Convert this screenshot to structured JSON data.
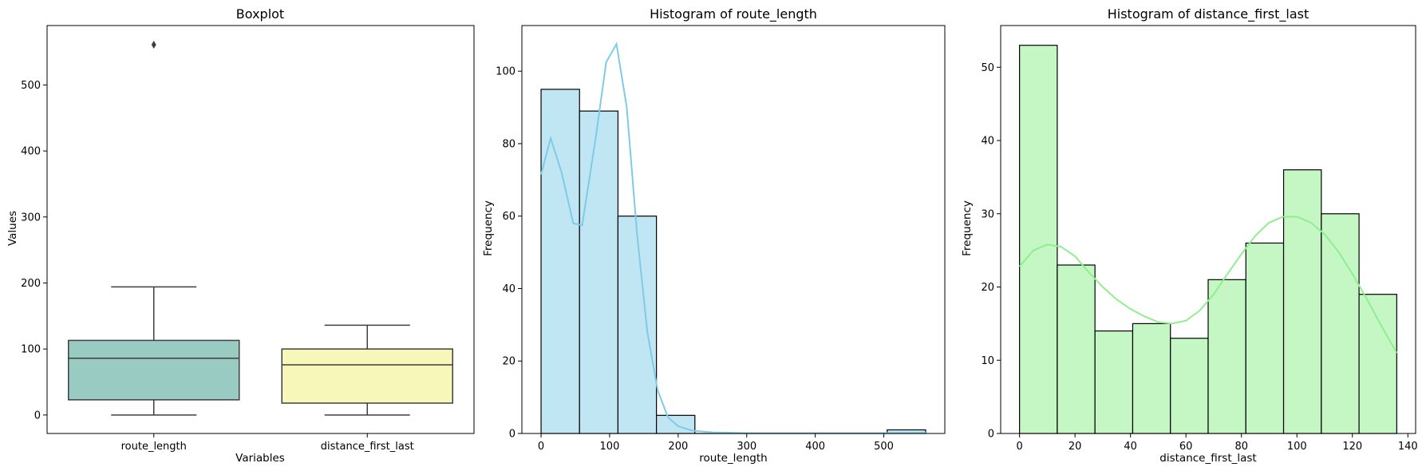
{
  "chart_data": [
    {
      "type": "box",
      "title": "Boxplot",
      "xlabel": "Variables",
      "ylabel": "Values",
      "ylim": [
        -28,
        590
      ],
      "yticks": [
        0,
        100,
        200,
        300,
        400,
        500
      ],
      "categories": [
        "route_length",
        "distance_first_last"
      ],
      "boxes": [
        {
          "name": "route_length",
          "min": 0,
          "q1": 23,
          "median": 86,
          "q3": 113,
          "max": 194,
          "outliers": [
            561
          ],
          "color": "#99cbc2"
        },
        {
          "name": "distance_first_last",
          "min": 0,
          "q1": 18,
          "median": 76,
          "q3": 100,
          "max": 136,
          "outliers": [],
          "color": "#f7f7b9"
        }
      ]
    },
    {
      "type": "bar",
      "title": "Histogram of route_length",
      "xlabel": "route_length",
      "ylabel": "Frequency",
      "xlim": [
        -28,
        589
      ],
      "ylim": [
        0,
        112.6
      ],
      "xticks": [
        0,
        100,
        200,
        300,
        400,
        500
      ],
      "yticks": [
        0,
        20,
        40,
        60,
        80,
        100
      ],
      "bin_edges": [
        0,
        56.1,
        112.2,
        168.3,
        224.4,
        280.5,
        336.6,
        392.7,
        448.8,
        504.9,
        561
      ],
      "counts": [
        95,
        89,
        60,
        5,
        0,
        0,
        0,
        0,
        0,
        1
      ],
      "kde": [
        [
          0,
          71.5
        ],
        [
          14,
          81.5
        ],
        [
          30,
          72
        ],
        [
          47,
          58
        ],
        [
          60,
          57.5
        ],
        [
          80,
          82
        ],
        [
          95,
          102.5
        ],
        [
          110,
          107.5
        ],
        [
          125,
          90
        ],
        [
          140,
          55
        ],
        [
          155,
          28
        ],
        [
          170,
          12
        ],
        [
          185,
          4.5
        ],
        [
          200,
          2
        ],
        [
          220,
          0.8
        ],
        [
          250,
          0.3
        ],
        [
          300,
          0.1
        ],
        [
          400,
          0.1
        ],
        [
          500,
          0.1
        ],
        [
          561,
          0.2
        ]
      ],
      "fill_color": "#c0e6f4",
      "line_color": "#7ecbe6"
    },
    {
      "type": "bar",
      "title": "Histogram of distance_first_last",
      "xlabel": "distance_first_last",
      "ylabel": "Frequency",
      "xlim": [
        -6.8,
        142.8
      ],
      "ylim": [
        0,
        55.7
      ],
      "xticks": [
        0,
        20,
        40,
        60,
        80,
        100,
        120,
        140
      ],
      "yticks": [
        0,
        10,
        20,
        30,
        40,
        50
      ],
      "bin_edges": [
        0,
        13.6,
        27.2,
        40.8,
        54.4,
        68,
        81.6,
        95.2,
        108.8,
        122.4,
        136
      ],
      "counts": [
        53,
        23,
        14,
        15,
        13,
        21,
        26,
        36,
        30,
        19
      ],
      "kde": [
        [
          0,
          22.8
        ],
        [
          5,
          25
        ],
        [
          10,
          25.8
        ],
        [
          15,
          25.5
        ],
        [
          20,
          24.2
        ],
        [
          25,
          22
        ],
        [
          30,
          20
        ],
        [
          35,
          18.3
        ],
        [
          40,
          17
        ],
        [
          45,
          16
        ],
        [
          50,
          15.2
        ],
        [
          55,
          15
        ],
        [
          60,
          15.4
        ],
        [
          65,
          16.8
        ],
        [
          70,
          19
        ],
        [
          75,
          21.8
        ],
        [
          80,
          24.5
        ],
        [
          85,
          27
        ],
        [
          90,
          28.8
        ],
        [
          95,
          29.6
        ],
        [
          100,
          29.6
        ],
        [
          105,
          28.8
        ],
        [
          110,
          27.2
        ],
        [
          115,
          24.8
        ],
        [
          120,
          21.8
        ],
        [
          125,
          18.5
        ],
        [
          130,
          15
        ],
        [
          136,
          11
        ]
      ],
      "fill_color": "#c4f7c4",
      "line_color": "#90ee90"
    }
  ]
}
